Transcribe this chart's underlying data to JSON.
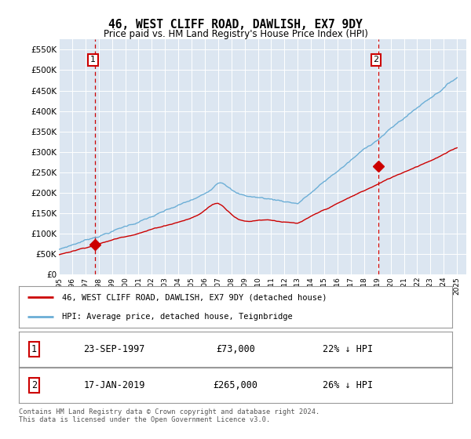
{
  "title": "46, WEST CLIFF ROAD, DAWLISH, EX7 9DY",
  "subtitle": "Price paid vs. HM Land Registry's House Price Index (HPI)",
  "plot_bg_color": "#dce6f1",
  "ylim": [
    0,
    575000
  ],
  "yticks": [
    0,
    50000,
    100000,
    150000,
    200000,
    250000,
    300000,
    350000,
    400000,
    450000,
    500000,
    550000
  ],
  "ytick_labels": [
    "£0",
    "£50K",
    "£100K",
    "£150K",
    "£200K",
    "£250K",
    "£300K",
    "£350K",
    "£400K",
    "£450K",
    "£500K",
    "£550K"
  ],
  "xlim_start": 1995.3,
  "xlim_end": 2025.7,
  "xticks": [
    1995,
    1996,
    1997,
    1998,
    1999,
    2000,
    2001,
    2002,
    2003,
    2004,
    2005,
    2006,
    2007,
    2008,
    2009,
    2010,
    2011,
    2012,
    2013,
    2014,
    2015,
    2016,
    2017,
    2018,
    2019,
    2020,
    2021,
    2022,
    2023,
    2024,
    2025
  ],
  "transaction1_x": 1997.73,
  "transaction1_y": 73000,
  "transaction1_label": "1",
  "transaction2_x": 2019.05,
  "transaction2_y": 265000,
  "transaction2_label": "2",
  "hpi_color": "#6baed6",
  "price_color": "#cc0000",
  "vline_color": "#cc0000",
  "marker_color": "#cc0000",
  "legend_label1": "46, WEST CLIFF ROAD, DAWLISH, EX7 9DY (detached house)",
  "legend_label2": "HPI: Average price, detached house, Teignbridge",
  "annotation1_date": "23-SEP-1997",
  "annotation1_price": "£73,000",
  "annotation1_hpi": "22% ↓ HPI",
  "annotation2_date": "17-JAN-2019",
  "annotation2_price": "£265,000",
  "annotation2_hpi": "26% ↓ HPI",
  "footnote": "Contains HM Land Registry data © Crown copyright and database right 2024.\nThis data is licensed under the Open Government Licence v3.0."
}
